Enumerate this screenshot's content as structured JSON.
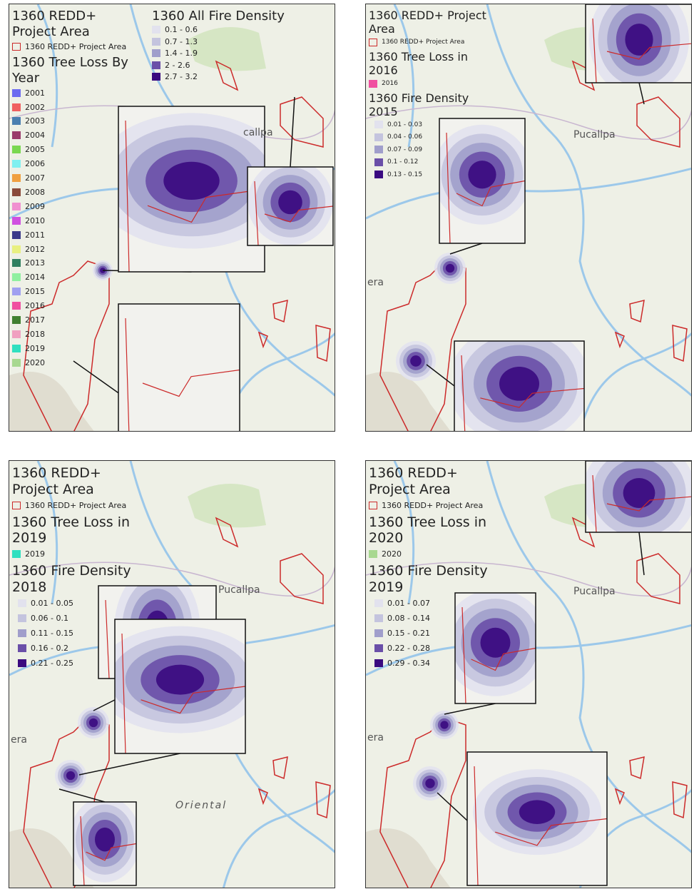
{
  "panels": [
    {
      "legend": [
        {
          "title": "1360 REDD+ Project Area",
          "items": [
            {
              "label": "1360 REDD+ Project Area",
              "color": "#cc2a2a"
            }
          ]
        },
        {
          "title": "1360 Tree Loss By Year",
          "items": [
            {
              "label": "2001",
              "color": "#6b6bf0"
            },
            {
              "label": "2002",
              "color": "#f06060"
            },
            {
              "label": "2003",
              "color": "#4a7fb0"
            },
            {
              "label": "2004",
              "color": "#9a3a6a"
            },
            {
              "label": "2005",
              "color": "#7ad850"
            },
            {
              "label": "2006",
              "color": "#80f0f0"
            },
            {
              "label": "2007",
              "color": "#f0a040"
            },
            {
              "label": "2008",
              "color": "#8a4a3a"
            },
            {
              "label": "2009",
              "color": "#f090d0"
            },
            {
              "label": "2010",
              "color": "#d050e0"
            },
            {
              "label": "2011",
              "color": "#3a3a8a"
            },
            {
              "label": "2012",
              "color": "#e8f080"
            },
            {
              "label": "2013",
              "color": "#308060"
            },
            {
              "label": "2014",
              "color": "#90f0a0"
            },
            {
              "label": "2015",
              "color": "#a0a0f0"
            },
            {
              "label": "2016",
              "color": "#f050a0"
            },
            {
              "label": "2017",
              "color": "#408030"
            },
            {
              "label": "2018",
              "color": "#f0a0c0"
            },
            {
              "label": "2019",
              "color": "#30e0c0"
            },
            {
              "label": "2020",
              "color": "#a8d890"
            }
          ]
        },
        {
          "title": "1360 All Fire Density",
          "items": [
            {
              "label": "0.1 - 0.6",
              "color": "#e2e2ee"
            },
            {
              "label": "0.7 - 1.3",
              "color": "#c4c4de"
            },
            {
              "label": "1.4 - 1.9",
              "color": "#a09ecb"
            },
            {
              "label": "2 - 2.6",
              "color": "#6a4fa8"
            },
            {
              "label": "2.7 - 3.2",
              "color": "#3a0a80"
            }
          ]
        }
      ],
      "map_labels": [
        "callpa"
      ]
    },
    {
      "legend": [
        {
          "title": "1360 REDD+ Project Area",
          "items": [
            {
              "label": "1360 REDD+ Project Area",
              "color": "#cc2a2a"
            }
          ]
        },
        {
          "title": "1360 Tree Loss in 2016",
          "items": [
            {
              "label": "2016",
              "color": "#f050a0"
            }
          ]
        },
        {
          "title": "1360 Fire Density 2015",
          "items": [
            {
              "label": "0.01 - 0.03",
              "color": "#e2e2ee"
            },
            {
              "label": "0.04 - 0.06",
              "color": "#c4c4de"
            },
            {
              "label": "0.07 - 0.09",
              "color": "#a09ecb"
            },
            {
              "label": "0.1 - 0.12",
              "color": "#6a4fa8"
            },
            {
              "label": "0.13 - 0.15",
              "color": "#3a0a80"
            }
          ]
        }
      ],
      "map_labels": [
        "Pucallpa",
        "era"
      ]
    },
    {
      "legend": [
        {
          "title": "1360 REDD+ Project Area",
          "items": [
            {
              "label": "1360 REDD+ Project Area",
              "color": "#cc2a2a"
            }
          ]
        },
        {
          "title": "1360 Tree Loss in 2019",
          "items": [
            {
              "label": "2019",
              "color": "#30e0c0"
            }
          ]
        },
        {
          "title": "1360 Fire Density 2018",
          "items": [
            {
              "label": "0.01 - 0.05",
              "color": "#e2e2ee"
            },
            {
              "label": "0.06 - 0.1",
              "color": "#c4c4de"
            },
            {
              "label": "0.11 - 0.15",
              "color": "#a09ecb"
            },
            {
              "label": "0.16 - 0.2",
              "color": "#6a4fa8"
            },
            {
              "label": "0.21 - 0.25",
              "color": "#3a0a80"
            }
          ]
        }
      ],
      "map_labels": [
        "Pucallpa",
        "era",
        "Oriental"
      ]
    },
    {
      "legend": [
        {
          "title": "1360 REDD+ Project Area",
          "items": [
            {
              "label": "1360 REDD+ Project Area",
              "color": "#cc2a2a"
            }
          ]
        },
        {
          "title": "1360 Tree Loss in 2020",
          "items": [
            {
              "label": "2020",
              "color": "#a8d890"
            }
          ]
        },
        {
          "title": "1360 Fire Density 2019",
          "items": [
            {
              "label": "0.01 - 0.07",
              "color": "#e2e2ee"
            },
            {
              "label": "0.08 - 0.14",
              "color": "#c4c4de"
            },
            {
              "label": "0.15 - 0.21",
              "color": "#a09ecb"
            },
            {
              "label": "0.22 - 0.28",
              "color": "#6a4fa8"
            },
            {
              "label": "0.29 - 0.34",
              "color": "#3a0a80"
            }
          ]
        }
      ],
      "map_labels": [
        "Pucallpa",
        "era"
      ]
    }
  ]
}
